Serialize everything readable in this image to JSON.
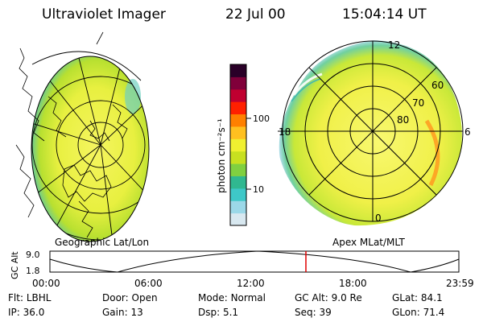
{
  "header": {
    "title": "Ultraviolet Imager",
    "date": "22 Jul 00",
    "time": "15:04:14 UT"
  },
  "colorbar": {
    "unit_label": "photon cm⁻²s⁻¹",
    "ticks": [
      "100",
      "10"
    ],
    "colors": [
      "#d8e8f0",
      "#9bd8e8",
      "#3ec8c8",
      "#30b890",
      "#80d040",
      "#c8e020",
      "#f0f030",
      "#ffc020",
      "#ff8000",
      "#ff2000",
      "#c00030",
      "#80003a",
      "#2a0028"
    ]
  },
  "left_panel": {
    "label": "Geographic Lat/Lon"
  },
  "right_panel": {
    "label": "Apex MLat/MLT",
    "mlt_labels": {
      "top": "12",
      "left": "18",
      "right": "6",
      "bottom": "0"
    },
    "lat_labels": [
      "60",
      "70",
      "80"
    ]
  },
  "altitude_plot": {
    "ylabel": "GC Alt",
    "yticks": [
      "9.0",
      "1.8"
    ],
    "xticks": [
      "00:00",
      "06:00",
      "12:00",
      "18:00",
      "23:59"
    ],
    "marker_color": "#e00000"
  },
  "status": {
    "row1": [
      {
        "key": "Flt:",
        "value": "LBHL"
      },
      {
        "key": "Door:",
        "value": "Open"
      },
      {
        "key": "Mode:",
        "value": "Normal"
      },
      {
        "key": "GC Alt:",
        "value": "9.0 Re"
      },
      {
        "key": "GLat:",
        "value": "84.1"
      }
    ],
    "row2": [
      {
        "key": "IP:",
        "value": "36.0"
      },
      {
        "key": "Gain:",
        "value": "13"
      },
      {
        "key": "Dsp:",
        "value": "5.1"
      },
      {
        "key": "Seq:",
        "value": "39"
      },
      {
        "key": "GLon:",
        "value": "71.4"
      }
    ]
  }
}
